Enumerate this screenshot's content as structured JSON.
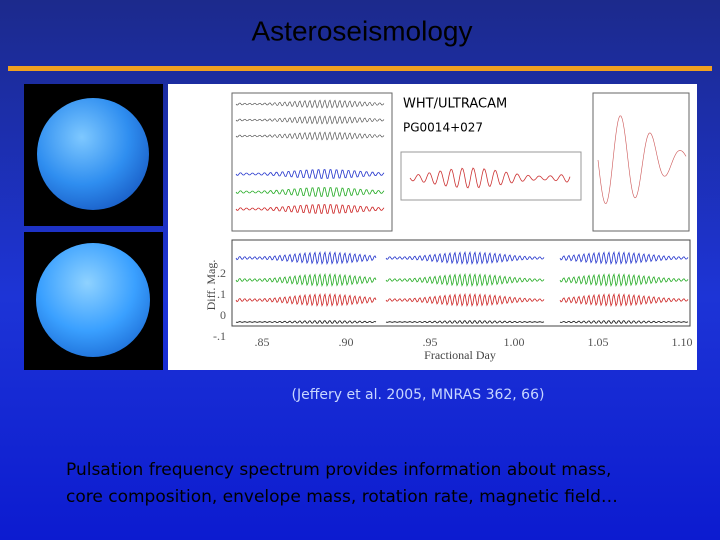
{
  "slide": {
    "title": "Asteroseismology",
    "figure": {
      "instrument": "WHT/ULTRACAM",
      "target": "PG0014+027",
      "y_axis_label": "Diff. Mag.",
      "x_axis_label": "Fractional Day",
      "x_ticks": [
        ".85",
        ".90",
        ".95",
        "1.00",
        "1.05",
        "1.10"
      ],
      "y_ticks": [
        ".2",
        ".1",
        "0",
        "-.1"
      ]
    },
    "citation": "(Jeffery et al. 2005, MNRAS 362, 66)",
    "body": [
      "Pulsation frequency spectrum provides information about mass,",
      "core composition, envelope mass, rotation rate, magnetic field…"
    ]
  }
}
